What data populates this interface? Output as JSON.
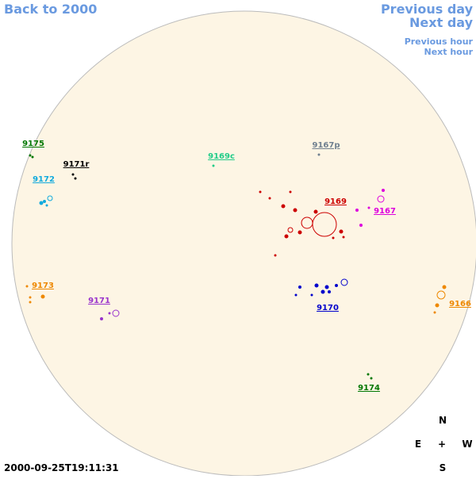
{
  "nav": {
    "back": "Back to 2000",
    "previous_day": "Previous day",
    "next_day": "Next day",
    "previous_hour": "Previous hour",
    "next_hour": "Next hour"
  },
  "regions": [
    {
      "label": "9175",
      "color": "#007700"
    },
    {
      "label": "9171r",
      "color": "#000000"
    },
    {
      "label": "9169c",
      "color": "#22cc88"
    },
    {
      "label": "9167p",
      "color": "#708090"
    },
    {
      "label": "9172",
      "color": "#11aadd"
    },
    {
      "label": "9169",
      "color": "#cc0000"
    },
    {
      "label": "9167",
      "color": "#dd00dd"
    },
    {
      "label": "9173",
      "color": "#ee8800"
    },
    {
      "label": "9171",
      "color": "#9933cc"
    },
    {
      "label": "9170",
      "color": "#0000cc"
    },
    {
      "label": "9166",
      "color": "#ee8800"
    },
    {
      "label": "9174",
      "color": "#007700"
    }
  ],
  "compass": {
    "north": "N",
    "east": "E",
    "center": "+",
    "west": "W",
    "south": "S"
  },
  "timestamp": "2000-09-25T19:11:31"
}
